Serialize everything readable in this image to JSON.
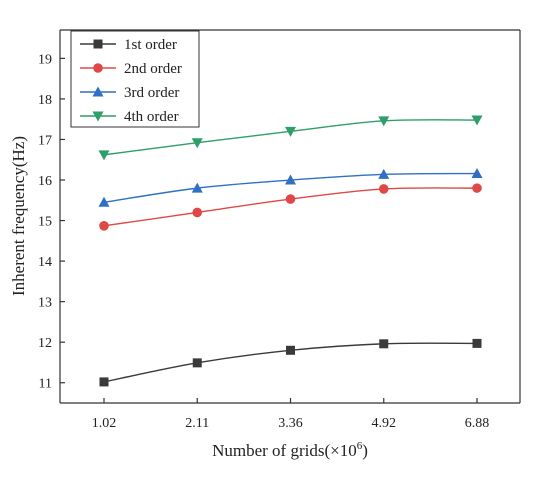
{
  "chart_data": {
    "type": "line",
    "categories": [
      "1.02",
      "2.11",
      "3.36",
      "4.92",
      "6.88"
    ],
    "series": [
      {
        "name": "1st order",
        "values": [
          11.02,
          11.49,
          11.8,
          11.96,
          11.97
        ],
        "color": "#3a3a3a",
        "marker": "square"
      },
      {
        "name": "2nd order",
        "values": [
          14.87,
          15.2,
          15.53,
          15.78,
          15.8
        ],
        "color": "#e04848",
        "marker": "circle"
      },
      {
        "name": "3rd order",
        "values": [
          15.45,
          15.8,
          16.0,
          16.14,
          16.16
        ],
        "color": "#2f6fc4",
        "marker": "triangle-up"
      },
      {
        "name": "4th order",
        "values": [
          16.62,
          16.92,
          17.2,
          17.46,
          17.48
        ],
        "color": "#2e9e6a",
        "marker": "triangle-down"
      }
    ],
    "xlabel_main": "Number of grids(×10",
    "xlabel_sup": "6",
    "xlabel_end": ")",
    "ylabel": "Inherent frequency(Hz)",
    "ylim": [
      10.5,
      19.7
    ],
    "yticks": [
      11,
      12,
      13,
      14,
      15,
      16,
      17,
      18,
      19
    ],
    "grid": false,
    "legend_position": "top-left"
  }
}
